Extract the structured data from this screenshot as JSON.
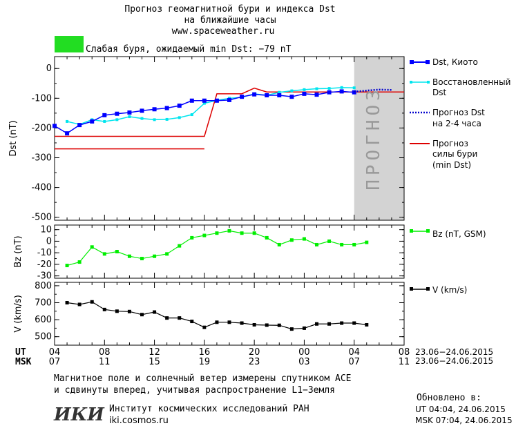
{
  "header": {
    "title_line1": "Прогноз геомагнитной бури и индекса Dst",
    "title_line2": "на ближайшие часы",
    "site": "www.spaceweather.ru",
    "status_text": "Слабая буря, ожидаемый min Dst: −79 nT",
    "status_color": "#22dd22"
  },
  "forecast_label": "ПРОГНОЗ",
  "colors": {
    "dst_kyoto": "#0000ff",
    "dst_restored": "#00e5ee",
    "dst_forecast": "#0000cc",
    "storm_forecast": "#dd0000",
    "bz": "#00ee00",
    "v": "#000000",
    "forecast_band": "#d3d3d3"
  },
  "legend": {
    "dst_kyoto": "Dst, Киото",
    "restored_1": "Восстановленный",
    "restored_2": "Dst",
    "forecast_1": "Прогноз Dst",
    "forecast_2": "на 2-4 часа",
    "storm_1": "Прогноз",
    "storm_2": "силы бури",
    "storm_3": "(min Dst)",
    "bz": "Bz (nT, GSM)",
    "v": "V (km/s)"
  },
  "time_axis": {
    "ut_label": "UT",
    "msk_label": "MSK",
    "ut_ticks": [
      "04",
      "08",
      "12",
      "16",
      "20",
      "00",
      "04",
      "08"
    ],
    "msk_ticks": [
      "07",
      "11",
      "15",
      "19",
      "23",
      "03",
      "07",
      "11"
    ],
    "ut_range": "23.06−24.06.2015",
    "msk_range": "23.06−24.06.2015"
  },
  "footer": {
    "note_line1": "Магнитное поле и солнечный ветер измерены спутником ACE",
    "note_line2": "и сдвинуты вперед, учитывая распространение L1−Земля",
    "logo": "ИКИ",
    "institute": "Институт космических исследований РАН",
    "institute_url": "iki.cosmos.ru",
    "updated_label": "Обновлено в:",
    "updated_ut": "UT  04:04, 24.06.2015",
    "updated_msk": "MSK 07:04, 24.06.2015"
  },
  "chart_data": [
    {
      "type": "line",
      "ylabel": "Dst (nT)",
      "ylim": [
        -510,
        40
      ],
      "xlim": [
        4,
        32
      ],
      "yticks": [
        0,
        -100,
        -200,
        -300,
        -400,
        -500
      ],
      "forecast_band_x": [
        4,
        4
      ],
      "series": [
        {
          "name": "Dst, Киото",
          "x": [
            4,
            5,
            6,
            7,
            8,
            9,
            10,
            11,
            12,
            13,
            14,
            15,
            16,
            17,
            18,
            19,
            20,
            21,
            22,
            23,
            24,
            25,
            26,
            27,
            28
          ],
          "values": [
            -193,
            -218,
            -190,
            -178,
            -157,
            -152,
            -148,
            -142,
            -137,
            -133,
            -125,
            -108,
            -108,
            -108,
            -106,
            -95,
            -87,
            -90,
            -90,
            -95,
            -85,
            -88,
            -80,
            -77,
            -80
          ]
        },
        {
          "name": "Восстановленный Dst",
          "x": [
            5,
            6,
            7,
            8,
            9,
            10,
            11,
            12,
            13,
            14,
            15,
            16,
            17,
            18,
            19,
            20,
            21,
            22,
            23,
            24,
            25,
            26,
            27,
            28
          ],
          "values": [
            -178,
            -188,
            -172,
            -178,
            -172,
            -162,
            -168,
            -172,
            -171,
            -165,
            -155,
            -117,
            -107,
            -100,
            -97,
            -85,
            -90,
            -80,
            -75,
            -71,
            -68,
            -67,
            -64,
            -65
          ]
        },
        {
          "name": "Прогноз Dst на 2-4 часа",
          "x": [
            28,
            29,
            30,
            31
          ],
          "values": [
            -78,
            -74,
            -71,
            -72
          ]
        },
        {
          "name": "Прогноз силы бури (min Dst)",
          "segments": [
            {
              "x": [
                4,
                16
              ],
              "values": [
                -270,
                -270
              ]
            },
            {
              "x": [
                4,
                16,
                17,
                19,
                20,
                21,
                32
              ],
              "values": [
                -228,
                -228,
                -85,
                -85,
                -66,
                -79,
                -79
              ]
            }
          ]
        }
      ]
    },
    {
      "type": "line",
      "ylabel": "Bz (nT)",
      "ylim": [
        -32,
        14
      ],
      "yticks": [
        10,
        0,
        -10,
        -20,
        -30
      ],
      "series": [
        {
          "name": "Bz (nT, GSM)",
          "x": [
            5,
            6,
            7,
            8,
            9,
            10,
            11,
            12,
            13,
            14,
            15,
            16,
            17,
            18,
            19,
            20,
            21,
            22,
            23,
            24,
            25,
            26,
            27,
            28,
            29
          ],
          "values": [
            -21,
            -18,
            -5,
            -11,
            -9,
            -13,
            -15,
            -13,
            -11,
            -4,
            3,
            5,
            7,
            9,
            7,
            7,
            3,
            -3,
            1,
            2,
            -3,
            0,
            -3,
            -3,
            -1
          ]
        }
      ]
    },
    {
      "type": "line",
      "ylabel": "V (km/s)",
      "ylim": [
        450,
        820
      ],
      "yticks": [
        800,
        700,
        600,
        500
      ],
      "series": [
        {
          "name": "V (km/s)",
          "x": [
            5,
            6,
            7,
            8,
            9,
            10,
            11,
            12,
            13,
            14,
            15,
            16,
            17,
            18,
            19,
            20,
            21,
            22,
            23,
            24,
            25,
            26,
            27,
            28,
            29
          ],
          "values": [
            700,
            690,
            705,
            660,
            650,
            648,
            630,
            645,
            610,
            610,
            590,
            555,
            585,
            585,
            580,
            570,
            568,
            567,
            545,
            550,
            575,
            575,
            580,
            580,
            570
          ]
        }
      ]
    }
  ]
}
